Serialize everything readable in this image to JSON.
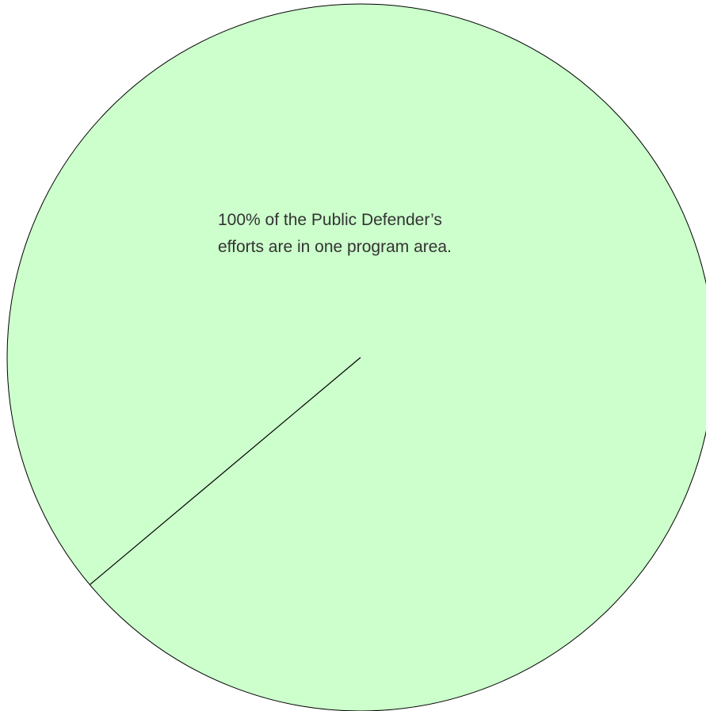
{
  "chart_data": {
    "type": "pie",
    "categories": [
      "Public Defender program area"
    ],
    "values": [
      100
    ],
    "colors": [
      "#ccffcc"
    ],
    "start_angle_deg": 140,
    "annotation": [
      "100% of the Public Defender’s",
      "efforts are in one program area."
    ]
  }
}
